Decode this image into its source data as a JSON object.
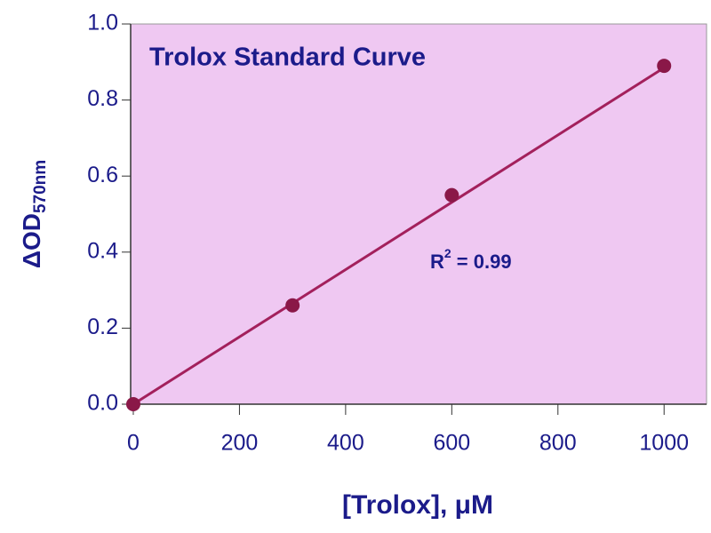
{
  "chart_data": {
    "type": "scatter",
    "title": "Trolox Standard Curve",
    "xlabel": "[Trolox], μM",
    "ylabel": "ΔOD",
    "ylabel_sub": "570nm",
    "annotation": {
      "text": "R",
      "sup": "2",
      "rest": " = 0.99"
    },
    "x": [
      0,
      300,
      600,
      1000
    ],
    "values": [
      0,
      0.26,
      0.55,
      0.89
    ],
    "color": "#8a1848",
    "fit": {
      "x": [
        0,
        1000
      ],
      "y": [
        0,
        0.885
      ],
      "color": "#a3205c"
    },
    "plot_background": "#efc8f2",
    "xlim": [
      -5,
      1080
    ],
    "ylim": [
      0,
      1.0
    ],
    "xticks": [
      0,
      200,
      400,
      600,
      800,
      1000
    ],
    "yticks": [
      {
        "value": 0,
        "label": "0.0"
      },
      0.2,
      0.4,
      0.6,
      0.8,
      {
        "value": 1,
        "label": "1.0"
      }
    ]
  }
}
